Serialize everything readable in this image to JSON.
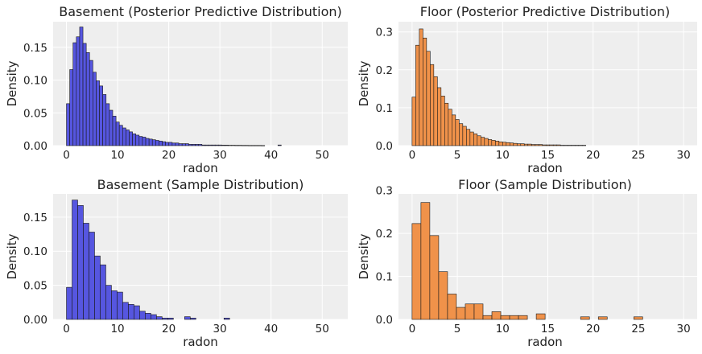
{
  "chart_data": [
    {
      "type": "bar",
      "title": "Basement (Posterior Predictive Distribution)",
      "xlabel": "radon",
      "ylabel": "Density",
      "xlim": [
        -2.6,
        55.0
      ],
      "ylim": [
        0,
        0.189
      ],
      "xticks": [
        0,
        10,
        20,
        30,
        40,
        50
      ],
      "yticks": [
        0.0,
        0.05,
        0.1,
        0.15
      ],
      "ytick_labels": [
        "0.00",
        "0.05",
        "0.10",
        "0.15"
      ],
      "bin_start": 0.0,
      "bin_width": 0.646,
      "color": "#5656e0",
      "grid": true,
      "values": [
        0.064,
        0.116,
        0.157,
        0.166,
        0.181,
        0.156,
        0.142,
        0.13,
        0.112,
        0.099,
        0.091,
        0.078,
        0.064,
        0.054,
        0.045,
        0.036,
        0.031,
        0.027,
        0.024,
        0.021,
        0.018,
        0.016,
        0.014,
        0.013,
        0.011,
        0.01,
        0.009,
        0.008,
        0.007,
        0.006,
        0.005,
        0.005,
        0.004,
        0.004,
        0.003,
        0.003,
        0.003,
        0.002,
        0.002,
        0.002,
        0.002,
        0.001,
        0.001,
        0.001,
        0.001,
        0.001,
        0.001,
        0.0008,
        0.0008,
        0.0006,
        0.0006,
        0.0005,
        0.0005,
        0.0004,
        0.0004,
        0.0003,
        0.0003,
        0.0003,
        0.0003,
        0.0002,
        0.0,
        0.0,
        0.0,
        0.0,
        0.001,
        0.0,
        0.0,
        0.0,
        0.0,
        0.0,
        0.0,
        0.0,
        0.0,
        0.0,
        0.0,
        0.0,
        0.0,
        0.0,
        0.0,
        0.0
      ]
    },
    {
      "type": "bar",
      "title": "Floor (Posterior Predictive Distribution)",
      "xlabel": "radon",
      "ylabel": "Density",
      "xlim": [
        -1.5,
        31.5
      ],
      "ylim": [
        0,
        0.327
      ],
      "xticks": [
        0,
        5,
        10,
        15,
        20,
        25,
        30
      ],
      "yticks": [
        0.0,
        0.1,
        0.2,
        0.3
      ],
      "ytick_labels": [
        "0.0",
        "0.1",
        "0.2",
        "0.3"
      ],
      "bin_start": 0.0,
      "bin_width": 0.4,
      "color": "#f0924a",
      "grid": true,
      "values": [
        0.128,
        0.265,
        0.308,
        0.284,
        0.249,
        0.214,
        0.182,
        0.153,
        0.131,
        0.112,
        0.096,
        0.081,
        0.069,
        0.058,
        0.051,
        0.043,
        0.036,
        0.031,
        0.026,
        0.022,
        0.019,
        0.016,
        0.014,
        0.012,
        0.01,
        0.009,
        0.008,
        0.007,
        0.006,
        0.005,
        0.005,
        0.004,
        0.004,
        0.003,
        0.003,
        0.003,
        0.002,
        0.002,
        0.002,
        0.002,
        0.002,
        0.001,
        0.001,
        0.001,
        0.001,
        0.001,
        0.001,
        0.001,
        0.0,
        0.0
      ]
    },
    {
      "type": "bar",
      "title": "Basement (Sample Distribution)",
      "xlabel": "radon",
      "ylabel": "Density",
      "xlim": [
        -2.6,
        55.0
      ],
      "ylim": [
        0,
        0.184
      ],
      "xticks": [
        0,
        10,
        20,
        30,
        40,
        50
      ],
      "yticks": [
        0.0,
        0.05,
        0.1,
        0.15
      ],
      "ytick_labels": [
        "0.00",
        "0.05",
        "0.10",
        "0.15"
      ],
      "bin_start": 0.0,
      "bin_width": 1.1,
      "color": "#5656e0",
      "grid": true,
      "values": [
        0.047,
        0.175,
        0.167,
        0.141,
        0.128,
        0.093,
        0.08,
        0.05,
        0.042,
        0.04,
        0.025,
        0.022,
        0.02,
        0.012,
        0.009,
        0.007,
        0.004,
        0.002,
        0.002,
        0.0,
        0.0,
        0.004,
        0.002,
        0.0,
        0.0,
        0.0,
        0.0,
        0.0,
        0.002,
        0.0,
        0.0,
        0.0,
        0.0,
        0.0,
        0.0,
        0.0,
        0.0,
        0.0,
        0.0,
        0.0,
        0.0,
        0.0,
        0.0,
        0.0,
        0.0,
        0.0,
        0.0,
        0.0
      ]
    },
    {
      "type": "bar",
      "title": "Floor (Sample Distribution)",
      "xlabel": "radon",
      "ylabel": "Density",
      "xlim": [
        -1.5,
        31.5
      ],
      "ylim": [
        0,
        0.292
      ],
      "xticks": [
        0,
        5,
        10,
        15,
        20,
        25,
        30
      ],
      "yticks": [
        0.0,
        0.1,
        0.2,
        0.3
      ],
      "ytick_labels": [
        "0.0",
        "0.1",
        "0.2",
        "0.3"
      ],
      "bin_start": 0.0,
      "bin_width": 0.98,
      "color": "#f0924a",
      "grid": true,
      "values": [
        0.223,
        0.272,
        0.195,
        0.111,
        0.059,
        0.028,
        0.036,
        0.036,
        0.009,
        0.018,
        0.009,
        0.009,
        0.009,
        0.0,
        0.013,
        0.0,
        0.0,
        0.0,
        0.0,
        0.006,
        0.0,
        0.006,
        0.0,
        0.0,
        0.0,
        0.006,
        0.0,
        0.0,
        0.0,
        0.0
      ]
    }
  ]
}
